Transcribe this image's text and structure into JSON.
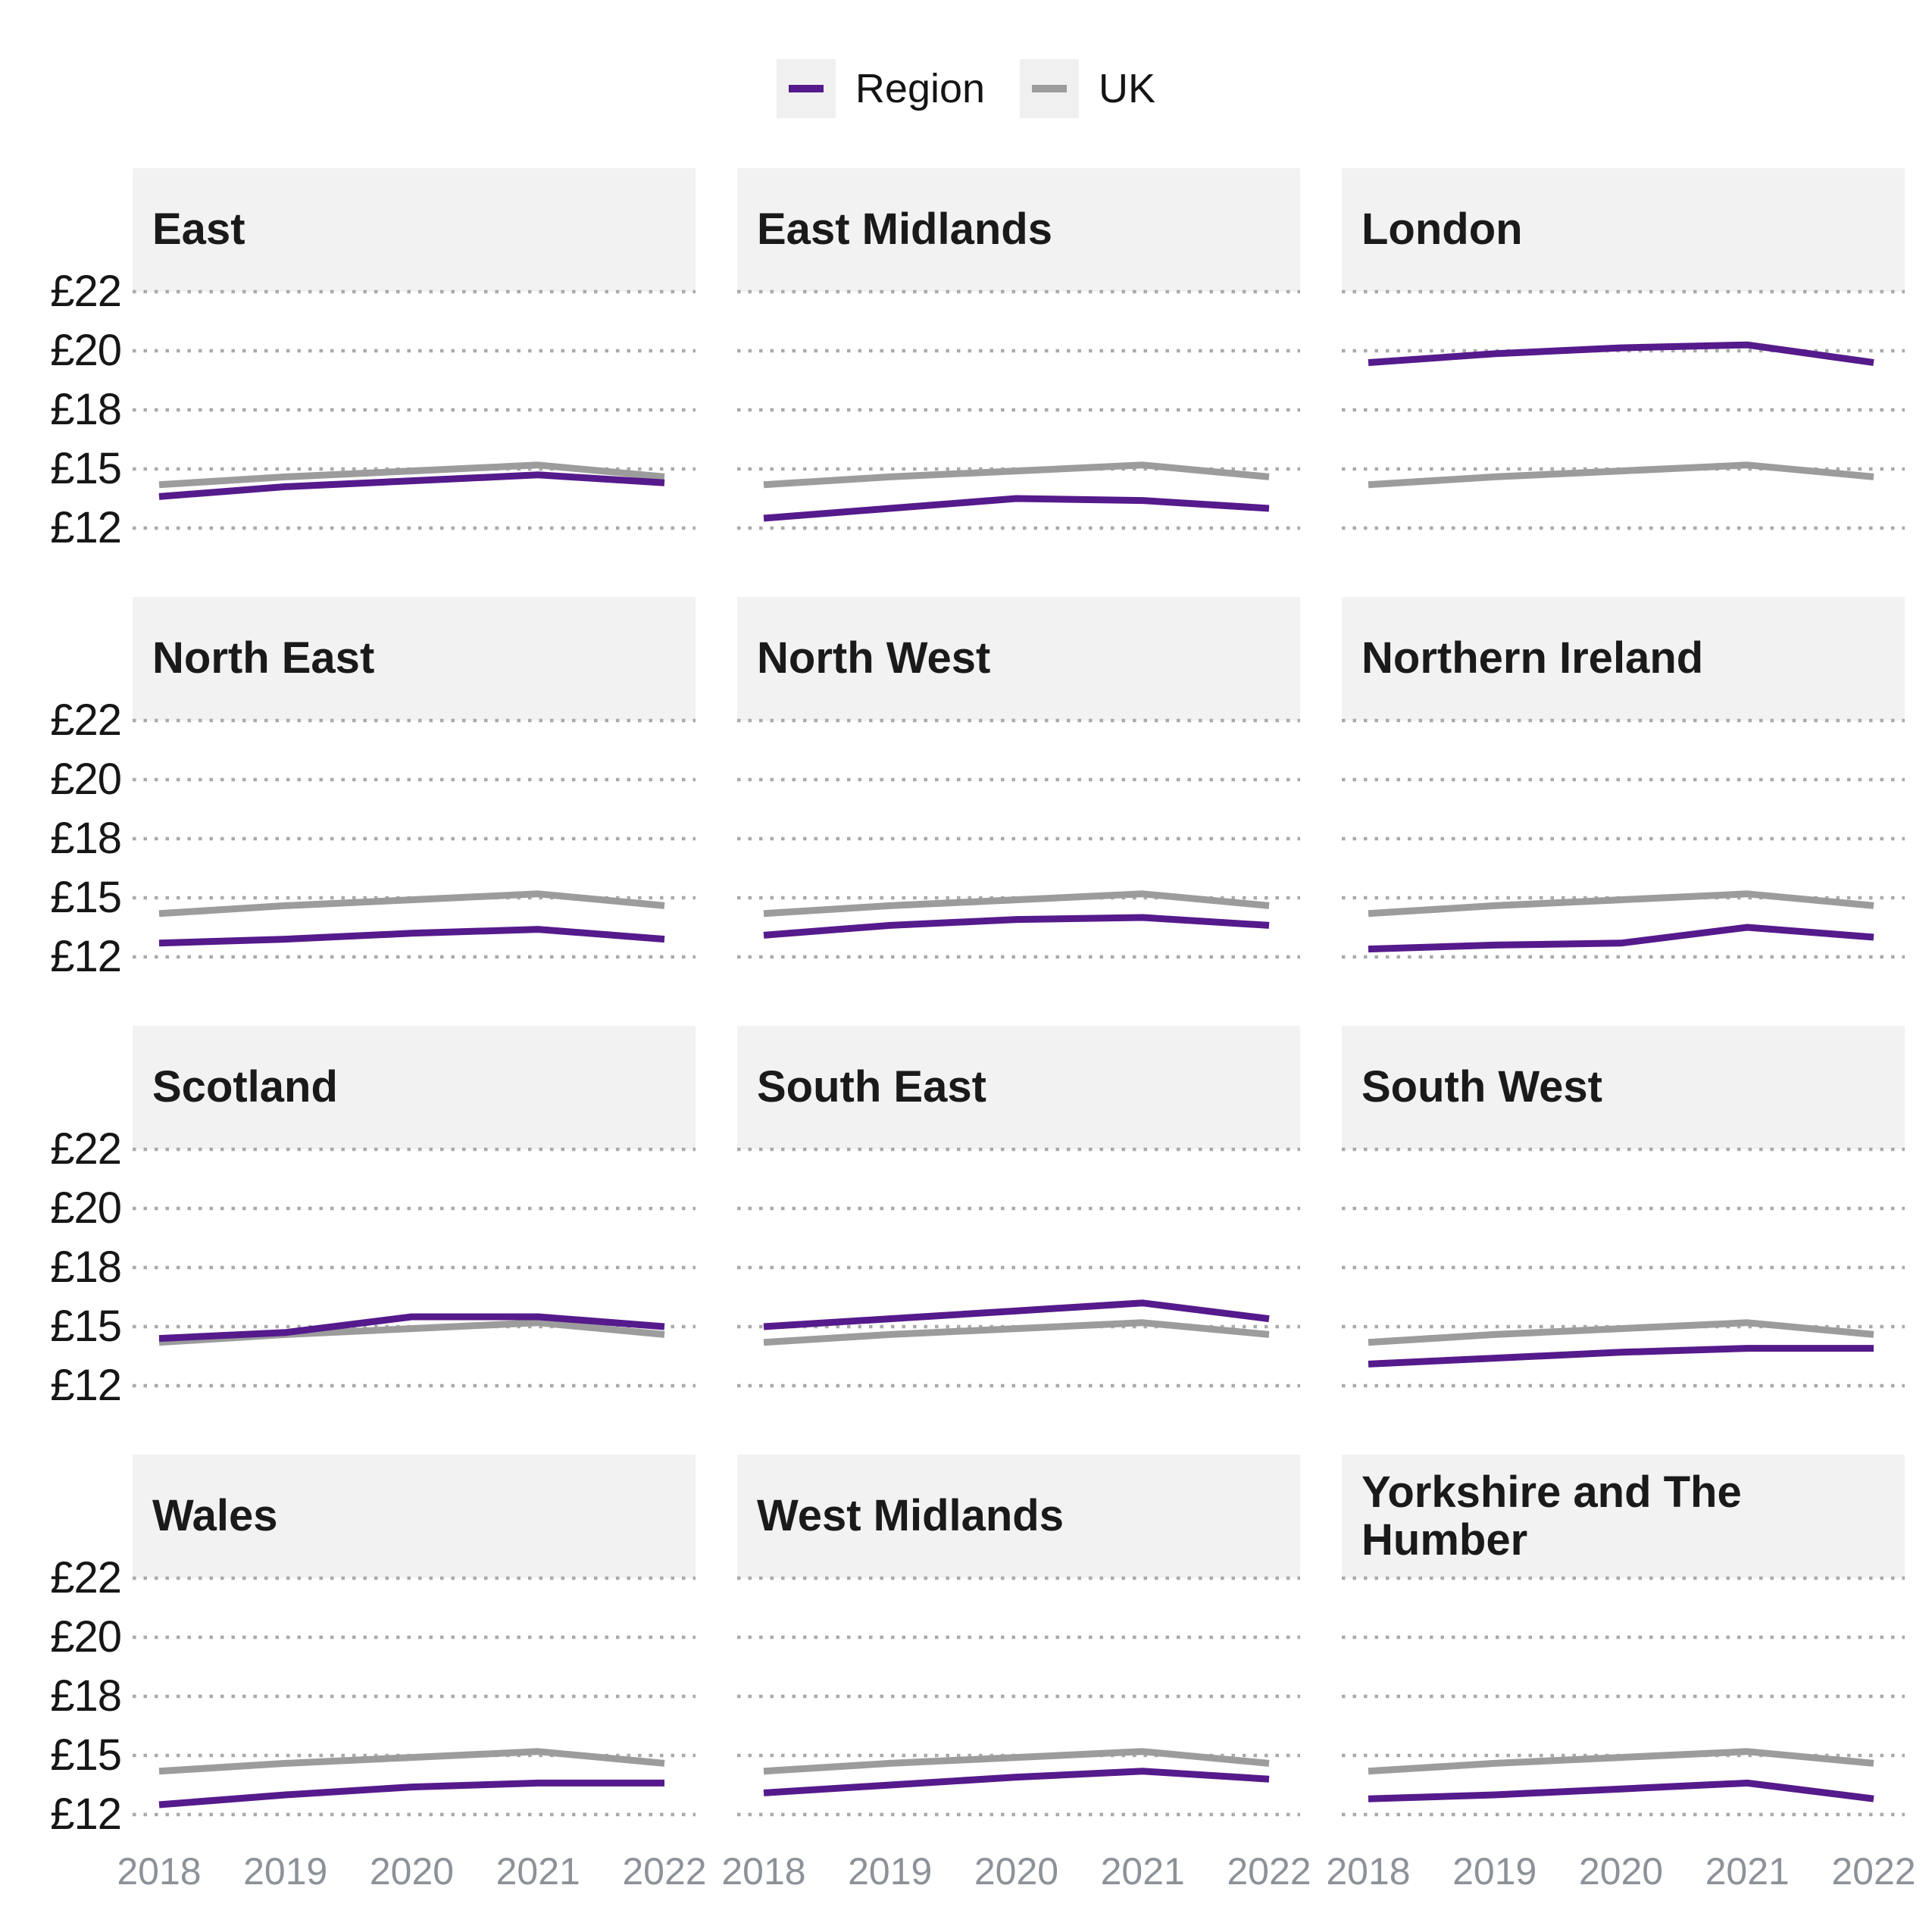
{
  "legend": {
    "region_label": "Region",
    "uk_label": "UK"
  },
  "colors": {
    "region_line": "#551a8b",
    "uk_line": "#9c9c9c",
    "gridline": "#aaaaaa",
    "panel_header_bg": "#f2f2f2",
    "y_tick_text": "#161616",
    "x_tick_text": "#8d9299",
    "title_text": "#1a1a1a",
    "legend_swatch_bg": "#f0f0f0"
  },
  "chart_data": {
    "type": "line",
    "layout": "small-multiples 4 rows x 3 columns",
    "grid": "dotted-horizontal",
    "legend_position": "top-center",
    "x": [
      2018,
      2019,
      2020,
      2021,
      2022
    ],
    "x_tick_labels": [
      "2018",
      "2019",
      "2020",
      "2021",
      "2022"
    ],
    "y_tick_labels": [
      "£22",
      "£20",
      "£18",
      "£15",
      "£12"
    ],
    "y_tick_values": [
      22,
      20,
      18,
      15,
      12
    ],
    "y_unit": "£ per hour",
    "uk_series": {
      "name": "UK",
      "values": [
        14.2,
        14.6,
        14.9,
        15.2,
        14.6
      ]
    },
    "panels": [
      {
        "title": "East",
        "region_values": [
          13.6,
          14.1,
          14.4,
          14.7,
          14.3
        ]
      },
      {
        "title": "East Midlands",
        "region_values": [
          12.5,
          13.0,
          13.5,
          13.4,
          13.0
        ]
      },
      {
        "title": "London",
        "region_values": [
          19.6,
          19.9,
          20.1,
          20.2,
          19.6
        ]
      },
      {
        "title": "North East",
        "region_values": [
          12.7,
          12.9,
          13.2,
          13.4,
          12.9
        ]
      },
      {
        "title": "North West",
        "region_values": [
          13.1,
          13.6,
          13.9,
          14.0,
          13.6
        ]
      },
      {
        "title": "Northern Ireland",
        "region_values": [
          12.4,
          12.6,
          12.7,
          13.5,
          13.0
        ]
      },
      {
        "title": "Scotland",
        "region_values": [
          14.4,
          14.7,
          15.5,
          15.5,
          15.0
        ]
      },
      {
        "title": "South East",
        "region_values": [
          15.0,
          15.4,
          15.8,
          16.2,
          15.4
        ]
      },
      {
        "title": "South West",
        "region_values": [
          13.1,
          13.4,
          13.7,
          13.9,
          13.9
        ]
      },
      {
        "title": "Wales",
        "region_values": [
          12.5,
          13.0,
          13.4,
          13.6,
          13.6
        ]
      },
      {
        "title": "West Midlands",
        "region_values": [
          13.1,
          13.5,
          13.9,
          14.2,
          13.8
        ]
      },
      {
        "title": "Yorkshire and The Humber",
        "region_values": [
          12.8,
          13.0,
          13.3,
          13.6,
          12.8
        ]
      }
    ]
  }
}
